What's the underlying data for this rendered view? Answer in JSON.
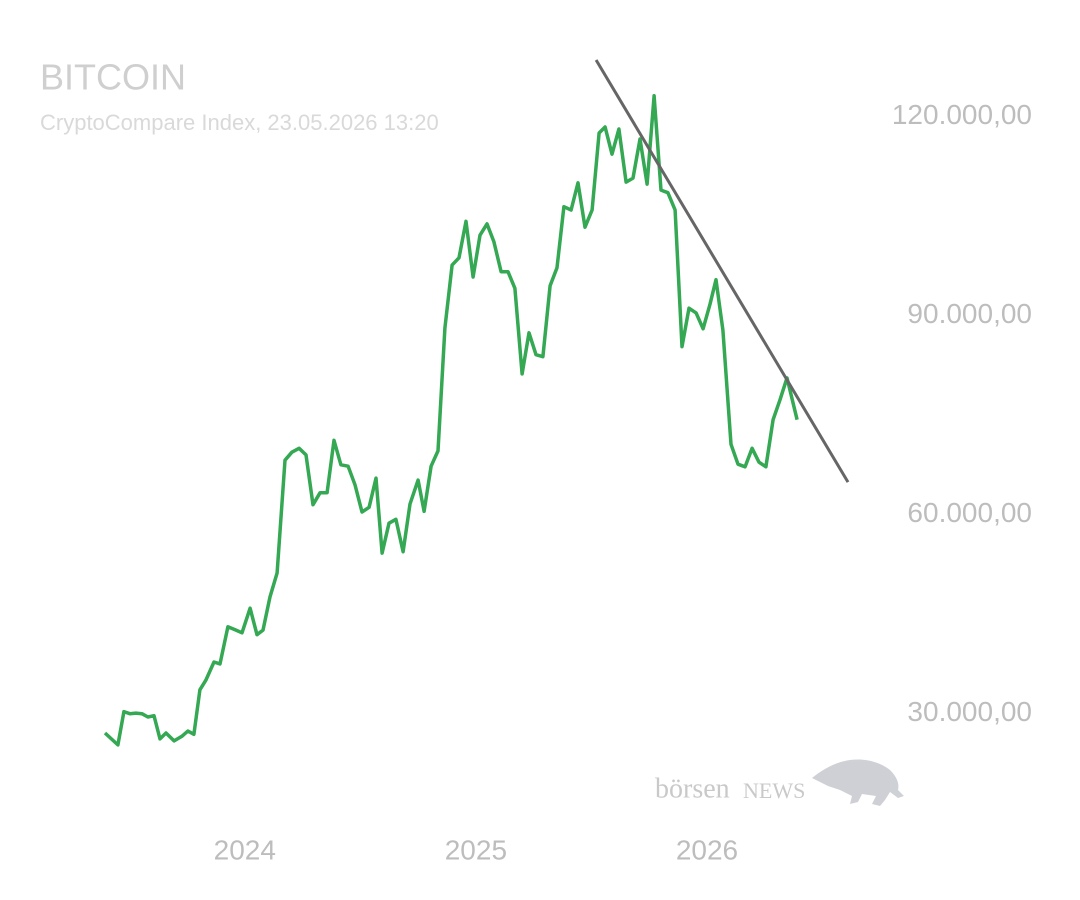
{
  "chart_data": {
    "type": "line",
    "title": "BITCOIN",
    "subtitle": "CryptoCompare Index, 23.05.2026 13:20",
    "x": [
      2023.395,
      2023.451,
      2023.477,
      2023.503,
      2023.529,
      2023.555,
      2023.581,
      2023.607,
      2023.633,
      2023.659,
      2023.694,
      2023.728,
      2023.754,
      2023.78,
      2023.806,
      2023.832,
      2023.867,
      2023.893,
      2023.927,
      2023.962,
      2023.988,
      2024.023,
      2024.053,
      2024.079,
      2024.109,
      2024.14,
      2024.174,
      2024.204,
      2024.235,
      2024.265,
      2024.295,
      2024.326,
      2024.356,
      2024.386,
      2024.416,
      2024.447,
      2024.477,
      2024.507,
      2024.538,
      2024.568,
      2024.594,
      2024.624,
      2024.654,
      2024.685,
      2024.715,
      2024.75,
      2024.776,
      2024.806,
      2024.836,
      2024.866,
      2024.897,
      2024.927,
      2024.957,
      2024.988,
      2025.018,
      2025.048,
      2025.078,
      2025.109,
      2025.139,
      2025.169,
      2025.2,
      2025.23,
      2025.26,
      2025.29,
      2025.321,
      2025.351,
      2025.381,
      2025.412,
      2025.442,
      2025.472,
      2025.503,
      2025.533,
      2025.559,
      2025.589,
      2025.619,
      2025.65,
      2025.68,
      2025.71,
      2025.741,
      2025.771,
      2025.801,
      2025.831,
      2025.862,
      2025.892,
      2025.922,
      2025.953,
      2025.983,
      2026.013,
      2026.039,
      2026.069,
      2026.104,
      2026.134,
      2026.165,
      2026.195,
      2026.225,
      2026.255,
      2026.286,
      2026.316,
      2026.346,
      2026.39
    ],
    "series": [
      {
        "color": "#34a853",
        "values": [
          27100,
          25300,
          30300,
          30000,
          30100,
          30000,
          29500,
          29700,
          26200,
          27100,
          25900,
          26600,
          27400,
          26900,
          33600,
          35100,
          37800,
          37500,
          43100,
          42600,
          42200,
          45900,
          41900,
          42600,
          47600,
          51200,
          68200,
          69400,
          70000,
          69000,
          61500,
          63300,
          63300,
          71200,
          67500,
          67300,
          64500,
          60400,
          61100,
          65500,
          54200,
          58700,
          59300,
          54400,
          61600,
          65200,
          60500,
          67300,
          69600,
          88100,
          97600,
          98700,
          104200,
          95800,
          102100,
          103800,
          101100,
          96600,
          96600,
          94100,
          81200,
          87400,
          84100,
          83800,
          94500,
          97200,
          106400,
          105900,
          110000,
          103300,
          105900,
          117500,
          118400,
          114300,
          118100,
          110100,
          110700,
          116600,
          109800,
          123100,
          108900,
          108500,
          105900,
          85300,
          91100,
          90400,
          88000,
          91700,
          95400,
          87800,
          70600,
          67600,
          67200,
          70000,
          67900,
          67200,
          74300,
          77300,
          80600,
          74300
        ]
      }
    ],
    "trendline": {
      "x": [
        2025.52,
        2026.61
      ],
      "values": [
        128500,
        64900
      ],
      "color": "#666666"
    },
    "xlim": [
      2023.3,
      2026.9
    ],
    "xticks": [
      2024,
      2025,
      2026
    ],
    "ylim": [
      17000,
      128500
    ],
    "yticks": [
      {
        "value": 30000,
        "label": "30.000,00"
      },
      {
        "value": 60000,
        "label": "60.000,00"
      },
      {
        "value": 90000,
        "label": "90.000,00"
      },
      {
        "value": 120000,
        "label": "120.000,00"
      }
    ],
    "y_axis_side": "right",
    "grid": false,
    "watermark": {
      "brand": "börsen",
      "suffix": "NEWS"
    }
  }
}
